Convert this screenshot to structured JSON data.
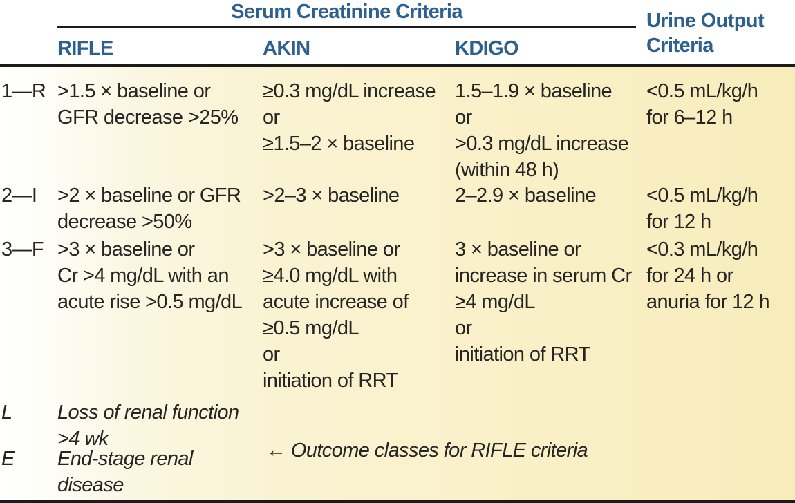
{
  "table": {
    "header": {
      "serum_group_title": "Serum Creatinine Criteria",
      "urine_title": "Urine Output\nCriteria",
      "columns": [
        "RIFLE",
        "AKIN",
        "KDIGO"
      ]
    },
    "rows": [
      {
        "stage": "1—R",
        "rifle": ">1.5 × baseline or\nGFR decrease >25%",
        "akin": "≥0.3 mg/dL increase\nor\n≥1.5–2 × baseline",
        "kdigo": "1.5–1.9 × baseline\nor\n>0.3 mg/dL increase\n(within 48 h)",
        "urine": "<0.5 mL/kg/h\nfor 6–12 h"
      },
      {
        "stage": "2—I",
        "rifle": ">2 × baseline or GFR\ndecrease >50%",
        "akin": ">2–3 × baseline",
        "kdigo": "2–2.9 × baseline",
        "urine": "<0.5 mL/kg/h\nfor 12 h"
      },
      {
        "stage": "3—F",
        "rifle": ">3 × baseline or\nCr >4 mg/dL with an\nacute rise >0.5 mg/dL",
        "akin": ">3 × baseline or\n≥4.0 mg/dL with\nacute increase of\n≥0.5 mg/dL\nor\ninitiation of RRT",
        "kdigo": "3 × baseline or\nincrease in serum Cr\n≥4 mg/dL\nor\ninitiation of RRT",
        "urine": "<0.3 mL/kg/h\nfor 24 h or\nanuria for 12 h"
      }
    ],
    "outcome_rows": [
      {
        "label": "L",
        "text": "Loss of renal function\n>4 wk"
      },
      {
        "label": "E",
        "text": "End-stage renal\ndisease"
      }
    ],
    "outcome_note": "← Outcome classes for RIFLE criteria"
  },
  "colors": {
    "header_blue": "#2d608f",
    "body_text": "#262524",
    "rule_black": "#1b1b1b",
    "bg_left": "#ffffff",
    "bg_right": "#f7ecba"
  }
}
